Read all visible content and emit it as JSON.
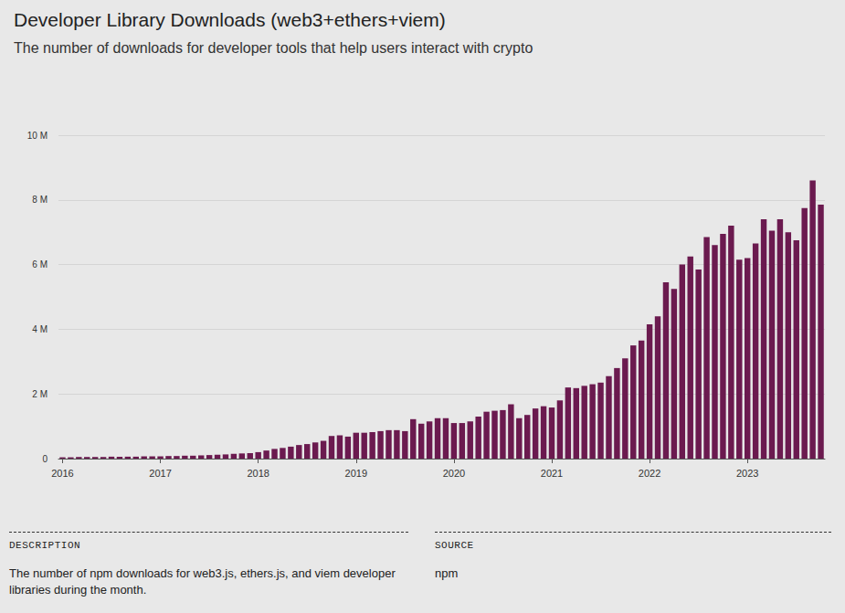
{
  "chart_data": {
    "type": "bar",
    "title": "Developer Library Downloads (web3+ethers+viem)",
    "subtitle": "The number of downloads for developer tools that help users interact with crypto",
    "categories": [
      "2016",
      null,
      null,
      null,
      null,
      null,
      null,
      null,
      null,
      null,
      null,
      null,
      "2017",
      null,
      null,
      null,
      null,
      null,
      null,
      null,
      null,
      null,
      null,
      null,
      "2018",
      null,
      null,
      null,
      null,
      null,
      null,
      null,
      null,
      null,
      null,
      null,
      "2019",
      null,
      null,
      null,
      null,
      null,
      null,
      null,
      null,
      null,
      null,
      null,
      "2020",
      null,
      null,
      null,
      null,
      null,
      null,
      null,
      null,
      null,
      null,
      null,
      "2021",
      null,
      null,
      null,
      null,
      null,
      null,
      null,
      null,
      null,
      null,
      null,
      "2022",
      null,
      null,
      null,
      null,
      null,
      null,
      null,
      null,
      null,
      null,
      null,
      "2023",
      null,
      null,
      null,
      null,
      null,
      null,
      null,
      null,
      null
    ],
    "values": [
      0.04,
      0.04,
      0.05,
      0.05,
      0.05,
      0.05,
      0.06,
      0.06,
      0.06,
      0.06,
      0.07,
      0.07,
      0.07,
      0.08,
      0.08,
      0.09,
      0.09,
      0.1,
      0.11,
      0.12,
      0.13,
      0.15,
      0.16,
      0.17,
      0.2,
      0.25,
      0.3,
      0.33,
      0.37,
      0.42,
      0.45,
      0.5,
      0.55,
      0.7,
      0.72,
      0.68,
      0.8,
      0.8,
      0.82,
      0.85,
      0.88,
      0.88,
      0.85,
      1.22,
      1.08,
      1.15,
      1.25,
      1.25,
      1.1,
      1.1,
      1.15,
      1.3,
      1.45,
      1.48,
      1.5,
      1.68,
      1.25,
      1.35,
      1.55,
      1.62,
      1.58,
      1.8,
      2.2,
      2.18,
      2.25,
      2.3,
      2.35,
      2.55,
      2.8,
      3.1,
      3.5,
      3.65,
      4.15,
      4.4,
      5.45,
      5.25,
      6.0,
      6.25,
      5.85,
      6.85,
      6.6,
      6.95,
      7.2,
      6.15,
      6.2,
      6.65,
      7.4,
      7.05,
      7.4,
      7.0,
      6.75,
      7.75,
      8.6,
      7.85
    ],
    "color": "#6b1a4f",
    "ylim": [
      0,
      10
    ],
    "yticks": [
      0,
      {
        "value": 2,
        "label": "2 M"
      },
      {
        "value": 4,
        "label": "4 M"
      },
      {
        "value": 6,
        "label": "6 M"
      },
      {
        "value": 8,
        "label": "8 M"
      },
      {
        "value": 10,
        "label": "10 M"
      }
    ],
    "grid": true,
    "description_heading": "DESCRIPTION",
    "description": "The number of npm downloads for web3.js, ethers.js, and viem developer libraries during the month.",
    "source_heading": "SOURCE",
    "source": "npm"
  }
}
